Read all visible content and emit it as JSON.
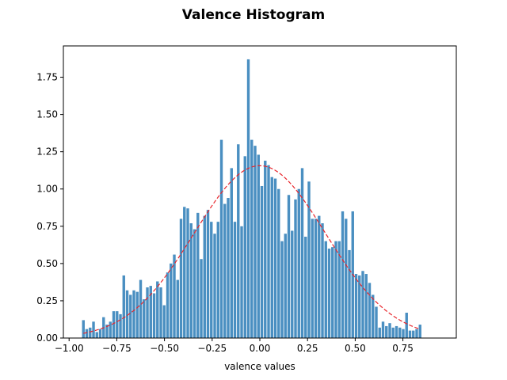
{
  "chart_data": {
    "type": "bar",
    "title": "Valence Histogram",
    "xlabel": "valence values",
    "ylabel": "",
    "xlim": [
      -1.03,
      1.03
    ],
    "ylim": [
      0,
      1.96
    ],
    "xticks": [
      -1.0,
      -0.75,
      -0.5,
      -0.25,
      0.0,
      0.25,
      0.5,
      0.75
    ],
    "xtick_labels": [
      "−1.00",
      "−0.75",
      "−0.50",
      "−0.25",
      "0.00",
      "0.25",
      "0.50",
      "0.75"
    ],
    "yticks": [
      0,
      0.25,
      0.5,
      0.75,
      1.0,
      1.25,
      1.5,
      1.75
    ],
    "ytick_labels": [
      "0.00",
      "0.25",
      "0.50",
      "0.75",
      "1.00",
      "1.25",
      "1.50",
      "1.75"
    ],
    "grid": false,
    "bar_color": "#4a8fc1",
    "curve_color": "#e8262c",
    "bin_range": [
      -0.925,
      0.84
    ],
    "values": [
      0.12,
      0.06,
      0.07,
      0.11,
      0.04,
      0.06,
      0.14,
      0.09,
      0.11,
      0.18,
      0.18,
      0.16,
      0.42,
      0.32,
      0.29,
      0.32,
      0.31,
      0.39,
      0.26,
      0.34,
      0.35,
      0.3,
      0.38,
      0.34,
      0.22,
      0.44,
      0.5,
      0.56,
      0.39,
      0.8,
      0.88,
      0.87,
      0.77,
      0.73,
      0.84,
      0.53,
      0.82,
      0.86,
      0.78,
      0.7,
      0.78,
      1.33,
      0.9,
      0.94,
      1.14,
      0.78,
      1.3,
      0.75,
      1.22,
      1.87,
      1.33,
      1.29,
      1.23,
      1.02,
      1.19,
      1.16,
      1.08,
      1.07,
      1.0,
      0.65,
      0.7,
      0.96,
      0.72,
      0.93,
      1.0,
      1.14,
      0.68,
      1.05,
      0.8,
      0.8,
      0.82,
      0.77,
      0.65,
      0.6,
      0.61,
      0.65,
      0.65,
      0.85,
      0.8,
      0.59,
      0.85,
      0.43,
      0.42,
      0.45,
      0.43,
      0.37,
      0.29,
      0.21,
      0.07,
      0.11,
      0.08,
      0.1,
      0.07,
      0.08,
      0.07,
      0.06,
      0.17,
      0.05,
      0.05,
      0.06,
      0.09
    ],
    "fit_curve": {
      "type": "normal_pdf",
      "mean": 0.0,
      "std": 0.345,
      "style": "dashed"
    }
  }
}
